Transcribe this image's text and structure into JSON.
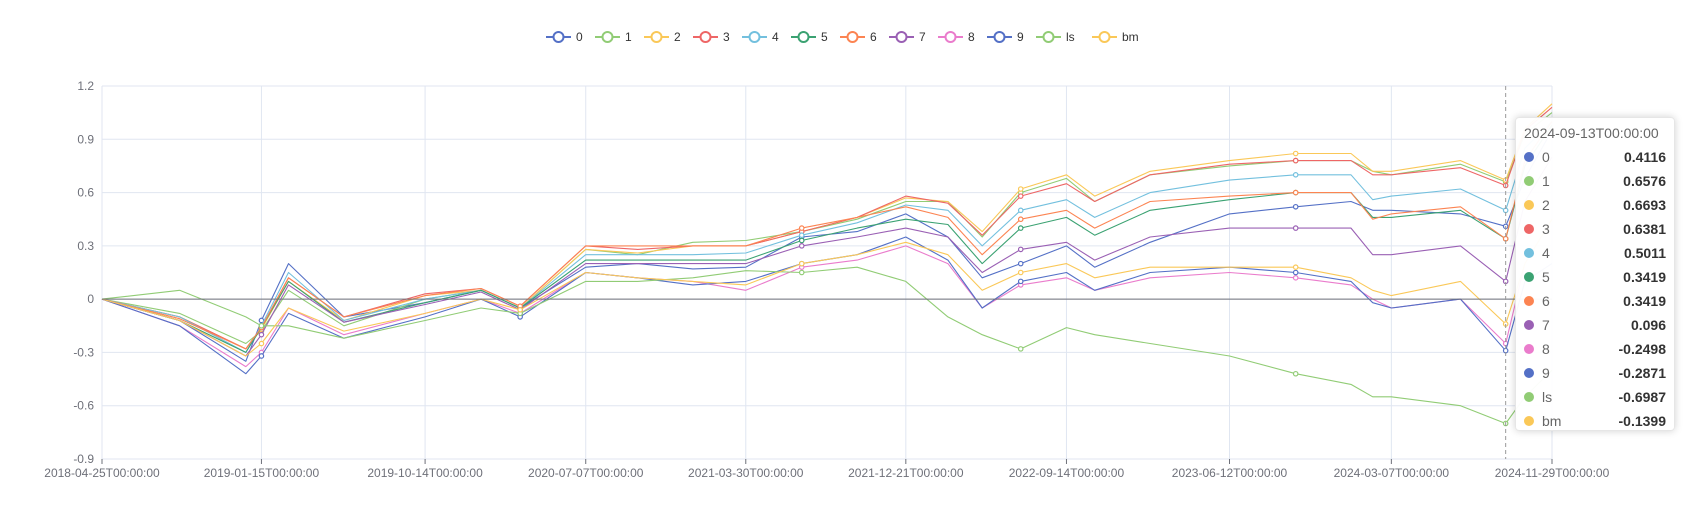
{
  "chart_data": {
    "type": "line",
    "title": "",
    "xlabel": "",
    "ylabel": "",
    "ylim": [
      -0.9,
      1.2
    ],
    "yticks": [
      "-0.9",
      "-0.6",
      "-0.3",
      "0",
      "0.3",
      "0.6",
      "0.9",
      "1.2"
    ],
    "xticks": [
      "2018-04-25T00:00:00",
      "2019-01-15T00:00:00",
      "2019-10-14T00:00:00",
      "2020-07-07T00:00:00",
      "2021-03-30T00:00:00",
      "2021-12-21T00:00:00",
      "2022-09-14T00:00:00",
      "2023-06-12T00:00:00",
      "2024-03-07T00:00:00",
      "2024-11-29T00:00:00"
    ],
    "grid": true,
    "legend_position": "top-center",
    "x": [
      "2018-04-25",
      "2018-09-01",
      "2018-12-20",
      "2019-01-15",
      "2019-03-01",
      "2019-06-01",
      "2019-10-14",
      "2020-01-15",
      "2020-03-20",
      "2020-07-07",
      "2020-10-01",
      "2021-01-01",
      "2021-03-30",
      "2021-07-01",
      "2021-10-01",
      "2021-12-21",
      "2022-03-01",
      "2022-04-27",
      "2022-06-30",
      "2022-09-14",
      "2022-10-31",
      "2023-01-31",
      "2023-06-12",
      "2023-09-30",
      "2023-12-31",
      "2024-02-05",
      "2024-03-07",
      "2024-06-30",
      "2024-09-13",
      "2024-10-15",
      "2024-11-29"
    ],
    "series": [
      {
        "name": "0",
        "color": "#5470c6",
        "values": [
          0,
          -0.12,
          -0.35,
          -0.12,
          0.2,
          -0.1,
          -0.02,
          0.05,
          -0.05,
          0.18,
          0.2,
          0.17,
          0.18,
          0.35,
          0.38,
          0.48,
          0.35,
          0.12,
          0.2,
          0.3,
          0.18,
          0.32,
          0.48,
          0.52,
          0.55,
          0.5,
          0.5,
          0.48,
          0.41,
          0.68,
          0.95
        ]
      },
      {
        "name": "1",
        "color": "#91cc75",
        "values": [
          0,
          -0.08,
          -0.25,
          -0.18,
          0.05,
          -0.15,
          0.0,
          0.05,
          -0.05,
          0.28,
          0.25,
          0.32,
          0.33,
          0.38,
          0.45,
          0.55,
          0.55,
          0.35,
          0.6,
          0.68,
          0.55,
          0.7,
          0.75,
          0.78,
          0.78,
          0.72,
          0.7,
          0.76,
          0.66,
          0.93,
          1.05
        ]
      },
      {
        "name": "2",
        "color": "#fac858",
        "values": [
          0,
          -0.1,
          -0.28,
          -0.17,
          0.1,
          -0.12,
          0.02,
          0.05,
          -0.05,
          0.28,
          0.26,
          0.3,
          0.3,
          0.38,
          0.46,
          0.57,
          0.55,
          0.38,
          0.62,
          0.7,
          0.58,
          0.72,
          0.78,
          0.82,
          0.82,
          0.72,
          0.72,
          0.78,
          0.67,
          0.96,
          1.1
        ]
      },
      {
        "name": "3",
        "color": "#ee6666",
        "values": [
          0,
          -0.1,
          -0.28,
          -0.16,
          0.12,
          -0.1,
          0.03,
          0.06,
          -0.04,
          0.3,
          0.28,
          0.3,
          0.3,
          0.38,
          0.46,
          0.58,
          0.54,
          0.36,
          0.58,
          0.65,
          0.55,
          0.7,
          0.76,
          0.78,
          0.78,
          0.7,
          0.7,
          0.74,
          0.64,
          0.95,
          1.08
        ]
      },
      {
        "name": "4",
        "color": "#73c0de",
        "values": [
          0,
          -0.1,
          -0.3,
          -0.15,
          0.15,
          -0.12,
          0.0,
          0.05,
          -0.05,
          0.25,
          0.25,
          0.25,
          0.26,
          0.36,
          0.43,
          0.53,
          0.5,
          0.3,
          0.5,
          0.56,
          0.46,
          0.6,
          0.67,
          0.7,
          0.7,
          0.56,
          0.58,
          0.62,
          0.5,
          0.85,
          1.0
        ]
      },
      {
        "name": "5",
        "color": "#3ba272",
        "values": [
          0,
          -0.12,
          -0.3,
          -0.16,
          0.1,
          -0.13,
          -0.02,
          0.05,
          -0.05,
          0.22,
          0.22,
          0.22,
          0.22,
          0.33,
          0.4,
          0.45,
          0.42,
          0.2,
          0.4,
          0.46,
          0.36,
          0.5,
          0.56,
          0.6,
          0.6,
          0.46,
          0.46,
          0.5,
          0.34,
          0.75,
          0.98
        ]
      },
      {
        "name": "6",
        "color": "#fc8452",
        "values": [
          0,
          -0.11,
          -0.28,
          -0.16,
          0.12,
          -0.1,
          0.02,
          0.06,
          -0.04,
          0.3,
          0.3,
          0.3,
          0.3,
          0.4,
          0.46,
          0.52,
          0.46,
          0.25,
          0.45,
          0.5,
          0.4,
          0.55,
          0.58,
          0.6,
          0.6,
          0.45,
          0.48,
          0.52,
          0.34,
          0.78,
          1.0
        ]
      },
      {
        "name": "7",
        "color": "#9a60b4",
        "values": [
          0,
          -0.12,
          -0.32,
          -0.2,
          0.08,
          -0.13,
          -0.03,
          0.04,
          -0.06,
          0.2,
          0.2,
          0.2,
          0.2,
          0.3,
          0.35,
          0.4,
          0.35,
          0.15,
          0.28,
          0.32,
          0.22,
          0.35,
          0.4,
          0.4,
          0.4,
          0.25,
          0.25,
          0.3,
          0.1,
          0.55,
          0.8
        ]
      },
      {
        "name": "8",
        "color": "#ea7ccc",
        "values": [
          0,
          -0.15,
          -0.38,
          -0.3,
          -0.05,
          -0.2,
          -0.08,
          0.0,
          -0.08,
          0.15,
          0.12,
          0.1,
          0.05,
          0.18,
          0.22,
          0.3,
          0.2,
          -0.05,
          0.08,
          0.12,
          0.05,
          0.12,
          0.15,
          0.12,
          0.08,
          0.0,
          -0.05,
          0.0,
          -0.25,
          0.2,
          0.45
        ]
      },
      {
        "name": "9",
        "color": "#5470c6",
        "values": [
          0,
          -0.15,
          -0.42,
          -0.32,
          -0.08,
          -0.22,
          -0.1,
          0.0,
          -0.1,
          0.15,
          0.12,
          0.08,
          0.1,
          0.2,
          0.25,
          0.35,
          0.22,
          -0.05,
          0.1,
          0.15,
          0.05,
          0.15,
          0.18,
          0.15,
          0.1,
          -0.02,
          -0.05,
          0.0,
          -0.29,
          0.1,
          0.2
        ]
      },
      {
        "name": "ls",
        "color": "#91cc75",
        "values": [
          0,
          0.05,
          -0.1,
          -0.15,
          -0.15,
          -0.22,
          -0.12,
          -0.05,
          -0.08,
          0.1,
          0.1,
          0.12,
          0.16,
          0.15,
          0.18,
          0.1,
          -0.1,
          -0.2,
          -0.28,
          -0.16,
          -0.2,
          -0.25,
          -0.32,
          -0.42,
          -0.48,
          -0.55,
          -0.55,
          -0.6,
          -0.7,
          -0.55,
          -0.4
        ]
      },
      {
        "name": "bm",
        "color": "#fac858",
        "values": [
          0,
          -0.12,
          -0.32,
          -0.25,
          -0.05,
          -0.18,
          -0.08,
          0.0,
          -0.06,
          0.15,
          0.12,
          0.1,
          0.08,
          0.2,
          0.25,
          0.32,
          0.25,
          0.05,
          0.15,
          0.2,
          0.12,
          0.18,
          0.18,
          0.18,
          0.12,
          0.05,
          0.02,
          0.1,
          -0.14,
          0.2,
          0.45
        ]
      }
    ],
    "tooltip": {
      "title": "2024-09-13T00:00:00",
      "rows": [
        {
          "name": "0",
          "value": "0.4116",
          "color": "#5470c6"
        },
        {
          "name": "1",
          "value": "0.6576",
          "color": "#91cc75"
        },
        {
          "name": "2",
          "value": "0.6693",
          "color": "#fac858"
        },
        {
          "name": "3",
          "value": "0.6381",
          "color": "#ee6666"
        },
        {
          "name": "4",
          "value": "0.5011",
          "color": "#73c0de"
        },
        {
          "name": "5",
          "value": "0.3419",
          "color": "#3ba272"
        },
        {
          "name": "6",
          "value": "0.3419",
          "color": "#fc8452"
        },
        {
          "name": "7",
          "value": "0.096",
          "color": "#9a60b4"
        },
        {
          "name": "8",
          "value": "-0.2498",
          "color": "#ea7ccc"
        },
        {
          "name": "9",
          "value": "-0.2871",
          "color": "#5470c6"
        },
        {
          "name": "ls",
          "value": "-0.6987",
          "color": "#91cc75"
        },
        {
          "name": "bm",
          "value": "-0.1399",
          "color": "#fac858"
        }
      ]
    }
  }
}
